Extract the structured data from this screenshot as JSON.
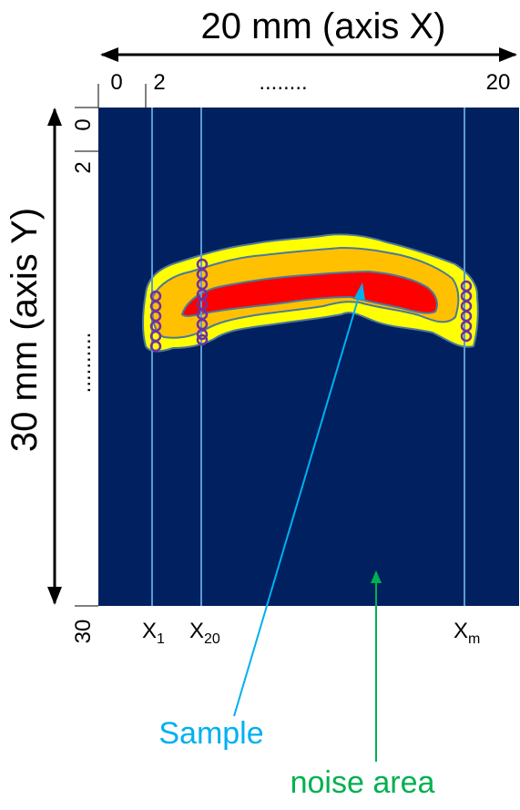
{
  "axis_x": {
    "title": "20 mm (axis X)",
    "tick_0": "0",
    "tick_2": "2",
    "ellipsis": "........",
    "tick_20": "20"
  },
  "axis_y": {
    "title": "30 mm (axis Y)",
    "tick_0": "0",
    "tick_2": "2",
    "ellipsis": "..........",
    "tick_30": "30"
  },
  "scan_lines": {
    "x1": {
      "base": "X",
      "sub": "1"
    },
    "x20": {
      "base": "X",
      "sub": "20"
    },
    "xm": {
      "base": "X",
      "sub": "m"
    }
  },
  "annotations": {
    "sample": "Sample",
    "noise_area": "noise area"
  },
  "colors": {
    "background": "#002060",
    "scan_line": "#5b9bd5",
    "outer_zone": "#ffff00",
    "middle_zone": "#ffc000",
    "core_zone": "#ff0000",
    "contour": "#4a7a9a",
    "sample_point": "#7030a0",
    "sample_arrow": "#00b0f0",
    "noise_arrow": "#00b050"
  }
}
